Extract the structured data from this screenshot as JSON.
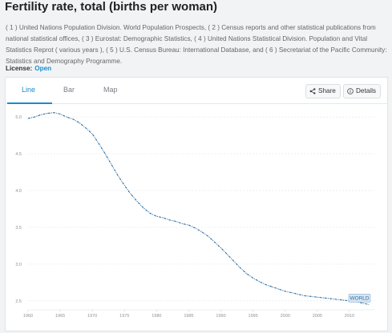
{
  "page": {
    "title": "Fertility rate, total (births per woman)",
    "source": "( 1 ) United Nations Population Division. World Population Prospects, ( 2 ) Census reports and other statistical publications from national statistical offices, ( 3 ) Eurostat: Demographic Statistics, ( 4 ) United Nations Statistical Division. Population and Vital Statistics Reprot ( various years ), ( 5 ) U.S. Census Bureau: International Database, and ( 6 ) Secretariat of the Pacific Community: Statistics and Demography Programme.",
    "license_label": "License:",
    "license_value": "Open"
  },
  "tabs": [
    {
      "label": "Line",
      "active": true
    },
    {
      "label": "Bar",
      "active": false
    },
    {
      "label": "Map",
      "active": false
    }
  ],
  "actions": {
    "share_label": "Share",
    "details_label": "Details",
    "share_icon": "share-icon",
    "details_icon": "info-icon"
  },
  "colors": {
    "accent": "#1a8bd0",
    "line": "#2e6fa3",
    "grid": "#e4e6e9"
  },
  "chart_data": {
    "type": "line",
    "title": "",
    "xlabel": "",
    "ylabel": "",
    "xlim": [
      1960,
      2014
    ],
    "ylim": [
      2.4,
      5.1
    ],
    "grid": true,
    "x_ticks": [
      1960,
      1965,
      1970,
      1975,
      1980,
      1985,
      1990,
      1995,
      2000,
      2005,
      2010
    ],
    "y_ticks": [
      2.5,
      3.0,
      3.5,
      4.0,
      4.5,
      5.0
    ],
    "y_tick_labels": [
      "2.5",
      "3.0",
      "3.5",
      "4.0",
      "4.5",
      "5.0"
    ],
    "series": [
      {
        "name": "WORLD",
        "x": [
          1960,
          1961,
          1962,
          1963,
          1964,
          1965,
          1966,
          1967,
          1968,
          1969,
          1970,
          1971,
          1972,
          1973,
          1974,
          1975,
          1976,
          1977,
          1978,
          1979,
          1980,
          1981,
          1982,
          1983,
          1984,
          1985,
          1986,
          1987,
          1988,
          1989,
          1990,
          1991,
          1992,
          1993,
          1994,
          1995,
          1996,
          1997,
          1998,
          1999,
          2000,
          2001,
          2002,
          2003,
          2004,
          2005,
          2006,
          2007,
          2008,
          2009,
          2010,
          2011,
          2012,
          2013
        ],
        "y": [
          4.98,
          5.0,
          5.03,
          5.05,
          5.06,
          5.04,
          5.0,
          4.97,
          4.92,
          4.85,
          4.77,
          4.64,
          4.5,
          4.35,
          4.2,
          4.07,
          3.95,
          3.85,
          3.76,
          3.69,
          3.65,
          3.63,
          3.6,
          3.58,
          3.55,
          3.53,
          3.49,
          3.44,
          3.38,
          3.3,
          3.22,
          3.13,
          3.04,
          2.95,
          2.87,
          2.81,
          2.76,
          2.72,
          2.69,
          2.66,
          2.63,
          2.61,
          2.59,
          2.57,
          2.56,
          2.55,
          2.54,
          2.53,
          2.52,
          2.51,
          2.5,
          2.49,
          2.47,
          2.45
        ]
      }
    ]
  }
}
